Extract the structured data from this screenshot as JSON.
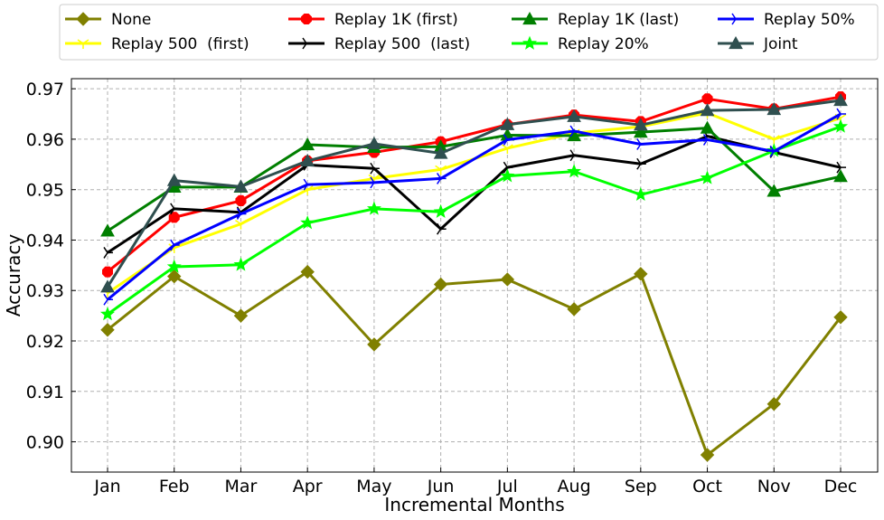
{
  "chart_data": {
    "type": "line",
    "xlabel": "Incremental Months",
    "ylabel": "Accuracy",
    "categories": [
      "Jan",
      "Feb",
      "Mar",
      "Apr",
      "May",
      "Jun",
      "Jul",
      "Aug",
      "Sep",
      "Oct",
      "Nov",
      "Dec"
    ],
    "ylim": [
      0.894,
      0.972
    ],
    "yticks": [
      "0.90",
      "0.91",
      "0.92",
      "0.93",
      "0.94",
      "0.95",
      "0.96",
      "0.97"
    ],
    "grid": true,
    "legend_position": "top",
    "series": [
      {
        "name": "None",
        "color": "#808000",
        "marker": "diamond",
        "values": [
          0.9222,
          0.9328,
          0.925,
          0.9337,
          0.9193,
          0.9312,
          0.9322,
          0.9263,
          0.9333,
          0.8974,
          0.9075,
          0.9247
        ]
      },
      {
        "name": "Replay 500  (first)",
        "color": "#ffff00",
        "marker": "tri_down",
        "values": [
          0.9295,
          0.9385,
          0.9432,
          0.95,
          0.9522,
          0.954,
          0.9582,
          0.9612,
          0.9625,
          0.9652,
          0.96,
          0.9642
        ]
      },
      {
        "name": "Replay 1K (first)",
        "color": "#ff0000",
        "marker": "octagon",
        "values": [
          0.9337,
          0.9445,
          0.9478,
          0.9557,
          0.9574,
          0.9595,
          0.9629,
          0.9648,
          0.9635,
          0.968,
          0.966,
          0.9684
        ]
      },
      {
        "name": "Replay 500  (last)",
        "color": "#000000",
        "marker": "tri_right",
        "values": [
          0.9375,
          0.9462,
          0.9455,
          0.9549,
          0.9542,
          0.9422,
          0.9544,
          0.9568,
          0.9551,
          0.9606,
          0.9574,
          0.9544
        ]
      },
      {
        "name": "Replay 1K (last)",
        "color": "#007f00",
        "marker": "triangle",
        "values": [
          0.9418,
          0.9505,
          0.9505,
          0.9589,
          0.9584,
          0.9585,
          0.9608,
          0.9607,
          0.9614,
          0.9622,
          0.9497,
          0.9526
        ]
      },
      {
        "name": "Replay 20%",
        "color": "#00ff00",
        "marker": "star",
        "values": [
          0.9253,
          0.9347,
          0.9351,
          0.9434,
          0.9462,
          0.9456,
          0.9527,
          0.9536,
          0.949,
          0.9523,
          0.9577,
          0.9625
        ]
      },
      {
        "name": "Replay 50%",
        "color": "#0000ff",
        "marker": "tri_right",
        "values": [
          0.9282,
          0.939,
          0.9452,
          0.951,
          0.9514,
          0.9522,
          0.9599,
          0.9616,
          0.959,
          0.9599,
          0.9576,
          0.965
        ]
      },
      {
        "name": "Joint",
        "color": "#2f4f4f",
        "marker": "triangle",
        "values": [
          0.9307,
          0.9518,
          0.9506,
          0.9557,
          0.9591,
          0.9572,
          0.9629,
          0.9645,
          0.9628,
          0.9657,
          0.9659,
          0.9677
        ]
      }
    ]
  }
}
